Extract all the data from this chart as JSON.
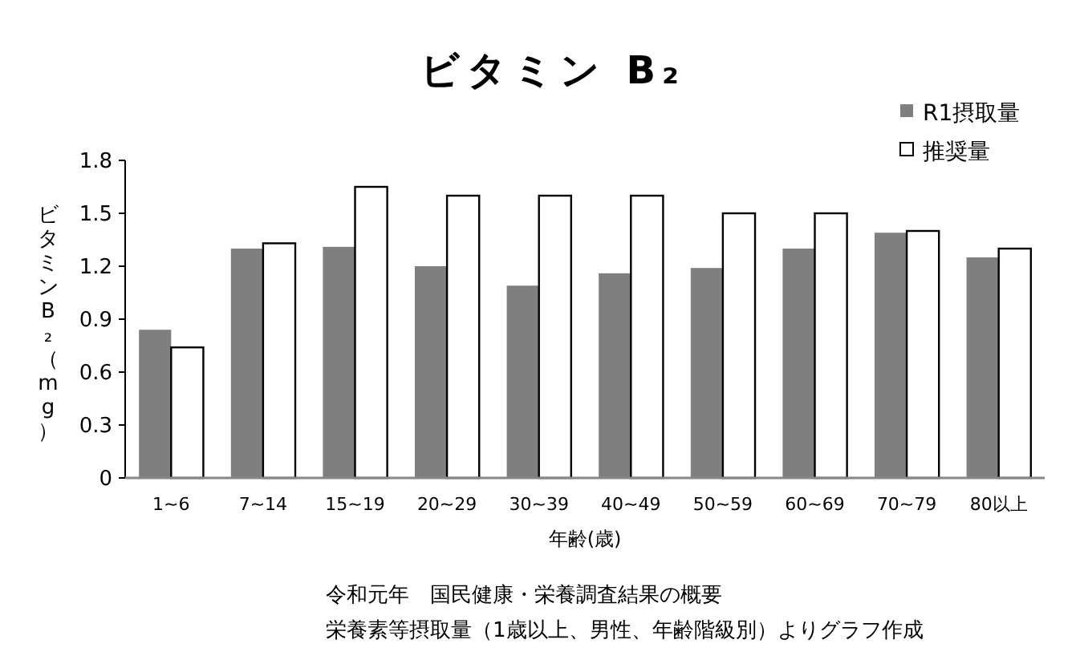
{
  "chart_data": {
    "type": "bar",
    "title": "ビタミン B₂",
    "xlabel": "年齢(歳)",
    "ylabel": "ビタミンB₂（mg）",
    "categories": [
      "1~6",
      "7~14",
      "15~19",
      "20~29",
      "30~39",
      "40~49",
      "50~59",
      "60~69",
      "70~79",
      "80以上"
    ],
    "series": [
      {
        "name": "R1摂取量",
        "color": "#7f7f7f",
        "values": [
          0.84,
          1.3,
          1.31,
          1.2,
          1.09,
          1.16,
          1.19,
          1.3,
          1.39,
          1.25
        ]
      },
      {
        "name": "推奨量",
        "color": "#ffffff",
        "values": [
          0.74,
          1.33,
          1.65,
          1.6,
          1.6,
          1.6,
          1.5,
          1.5,
          1.4,
          1.3
        ]
      }
    ],
    "ylim": [
      0,
      1.8
    ],
    "yticks": [
      0,
      0.3,
      0.6,
      0.9,
      1.2,
      1.5,
      1.8
    ],
    "legend": "top right",
    "grid": false,
    "annotations": [
      "令和元年　国民健康・栄養調査結果の概要",
      "栄養素等摂取量（1歳以上、男性、年齢階級別）よりグラフ作成"
    ]
  }
}
